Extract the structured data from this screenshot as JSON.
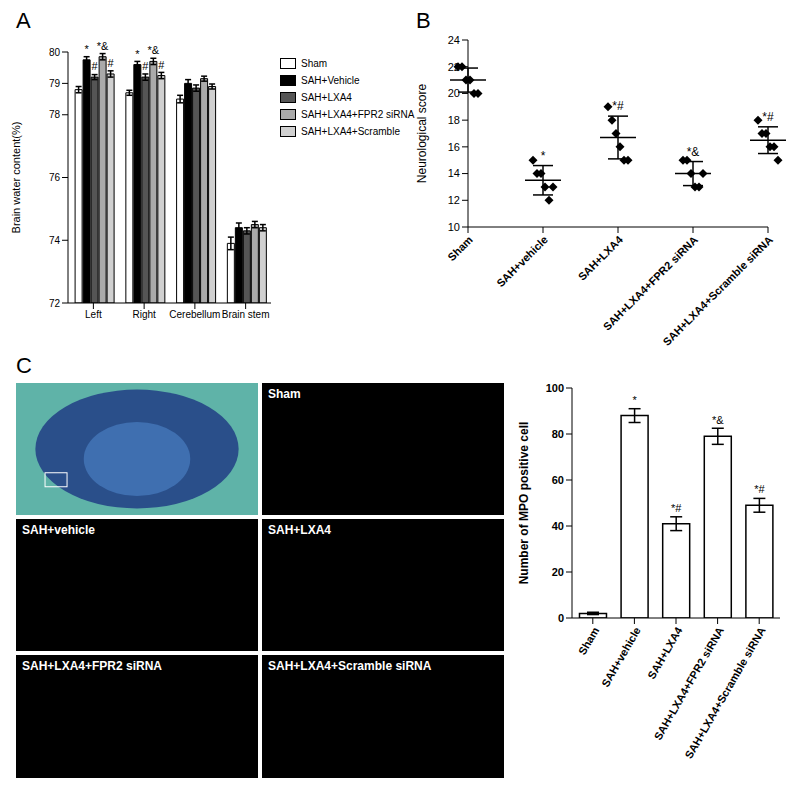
{
  "chart_data": [
    {
      "title": "A",
      "type": "bar",
      "ylabel": "Brain water content(%)",
      "categories": [
        "Left",
        "Right",
        "Cerebellum",
        "Brain stem"
      ],
      "ylim": [
        72,
        80
      ],
      "yticks": [
        72,
        74,
        76,
        78,
        79,
        80
      ],
      "series": [
        {
          "name": "Sham",
          "color": "#ffffff",
          "values": [
            78.8,
            78.7,
            78.5,
            73.9
          ],
          "errors": [
            0.1,
            0.08,
            0.12,
            0.2
          ],
          "annotations": [
            null,
            null,
            null,
            null
          ]
        },
        {
          "name": "SAH+Vehicle",
          "color": "#000000",
          "values": [
            79.75,
            79.6,
            79.0,
            74.4
          ],
          "errors": [
            0.1,
            0.1,
            0.12,
            0.15
          ],
          "annotations": [
            "*",
            "*",
            null,
            null
          ]
        },
        {
          "name": "SAH+LXA4",
          "color": "#555555",
          "values": [
            79.2,
            79.2,
            78.85,
            74.3
          ],
          "errors": [
            0.08,
            0.1,
            0.1,
            0.1
          ],
          "annotations": [
            "#",
            "#",
            null,
            null
          ]
        },
        {
          "name": "SAH+LXA4+FPR2 siRNA",
          "color": "#aaaaaa",
          "values": [
            79.85,
            79.7,
            79.15,
            74.5
          ],
          "errors": [
            0.1,
            0.1,
            0.08,
            0.1
          ],
          "annotations": [
            "*&",
            "*&",
            null,
            null
          ]
        },
        {
          "name": "SAH+LXA4+Scramble",
          "color": "#d0d0d0",
          "values": [
            79.3,
            79.25,
            78.9,
            74.4
          ],
          "errors": [
            0.1,
            0.1,
            0.08,
            0.1
          ],
          "annotations": [
            "#",
            "#",
            null,
            null
          ]
        }
      ]
    },
    {
      "title": "B",
      "type": "scatter",
      "ylabel": "Neurological score",
      "categories": [
        "Sham",
        "SAH+vehicle",
        "SAH+LXA4",
        "SAH+LXA4+FPR2 siRNA",
        "SAH+LXA4+Scramble siRNA"
      ],
      "ylim": [
        10,
        24
      ],
      "yticks": [
        10,
        12,
        14,
        16,
        18,
        20,
        22,
        24
      ],
      "points": [
        [
          22,
          22,
          21,
          21,
          20,
          20
        ],
        [
          15,
          14,
          14,
          13,
          12,
          13
        ],
        [
          19,
          18,
          17,
          16,
          15,
          15
        ],
        [
          15,
          15,
          14,
          13,
          13,
          14
        ],
        [
          18,
          17,
          17,
          16,
          16,
          15
        ]
      ],
      "means": [
        21,
        13.5,
        16.7,
        14,
        16.5
      ],
      "sd": [
        0.9,
        1.1,
        1.6,
        0.9,
        1.0
      ],
      "annotations": [
        null,
        "*",
        "*#",
        "*&",
        "*#"
      ],
      "marker": "diamond",
      "color": "#000000"
    },
    {
      "type": "bar",
      "ylabel": "Number of MPO positive cell",
      "categories": [
        "Sham",
        "SAH+vehicle",
        "SAH+LXA4",
        "SAH+LXA4+FPR2 siRNA",
        "SAH+LXA4+Scramble siRNA"
      ],
      "values": [
        2,
        88,
        41,
        79,
        49
      ],
      "errors": [
        0.5,
        3,
        3,
        3.5,
        3
      ],
      "annotations": [
        null,
        "*",
        "*#",
        "*&",
        "*#"
      ],
      "ylim": [
        0,
        100
      ],
      "yticks": [
        0,
        20,
        40,
        60,
        80,
        100
      ],
      "color": "#ffffff"
    }
  ],
  "images": {
    "title": "C",
    "labels": [
      null,
      "Sham",
      "SAH+vehicle",
      "SAH+LXA4",
      "SAH+LXA4+FPR2 siRNA",
      "SAH+LXA4+Scramble siRNA"
    ]
  }
}
